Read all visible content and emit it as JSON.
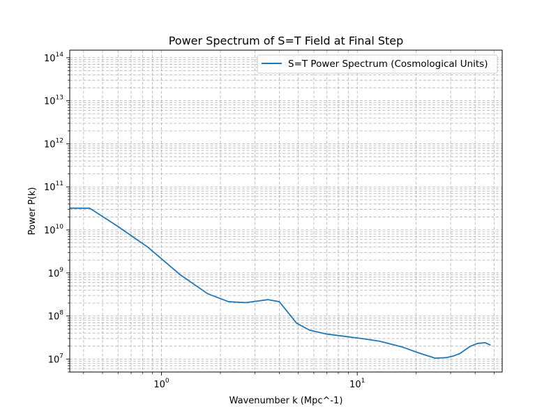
{
  "chart_data": {
    "type": "line",
    "title": "Power Spectrum of S=T Field at Final Step",
    "xlabel": "Wavenumber k (Mpc^-1)",
    "ylabel": "Power P(k)",
    "xscale": "log",
    "yscale": "log",
    "xlim": [
      0.34,
      55
    ],
    "ylim": [
      5000000,
      150000000000000
    ],
    "grid": true,
    "grid_which": "both",
    "legend_position": "top-right",
    "x_ticks": [
      {
        "value": 1,
        "base": "10",
        "exp": "0"
      },
      {
        "value": 10,
        "base": "10",
        "exp": "1"
      }
    ],
    "y_ticks": [
      {
        "value": 10000000,
        "base": "10",
        "exp": "7"
      },
      {
        "value": 100000000,
        "base": "10",
        "exp": "8"
      },
      {
        "value": 1000000000,
        "base": "10",
        "exp": "9"
      },
      {
        "value": 10000000000,
        "base": "10",
        "exp": "10"
      },
      {
        "value": 100000000000,
        "base": "10",
        "exp": "11"
      },
      {
        "value": 1000000000000,
        "base": "10",
        "exp": "12"
      },
      {
        "value": 10000000000000,
        "base": "10",
        "exp": "13"
      },
      {
        "value": 100000000000000,
        "base": "10",
        "exp": "14"
      }
    ],
    "series": [
      {
        "name": "S=T Power Spectrum (Cosmological Units)",
        "color": "#1f77b4",
        "x": [
          0.34,
          0.43,
          0.6,
          0.85,
          1.25,
          1.72,
          2.2,
          2.7,
          3.5,
          4.0,
          4.4,
          4.9,
          5.7,
          7.0,
          8.5,
          10.5,
          13.0,
          17.0,
          20.5,
          25.0,
          28.5,
          31.0,
          33.5,
          36.0,
          38.0,
          41.0,
          45.0,
          48.0
        ],
        "y": [
          32000000000,
          32000000000,
          12000000000,
          4000000000,
          900000000,
          330000000,
          215000000,
          205000000,
          240000000,
          215000000,
          125000000,
          68000000,
          47000000,
          38000000,
          34000000,
          30000000,
          26000000,
          19000000,
          14000000,
          10500000,
          10800000,
          11800000,
          13500000,
          17000000,
          20000000,
          23000000,
          24000000,
          21000000
        ]
      }
    ]
  }
}
